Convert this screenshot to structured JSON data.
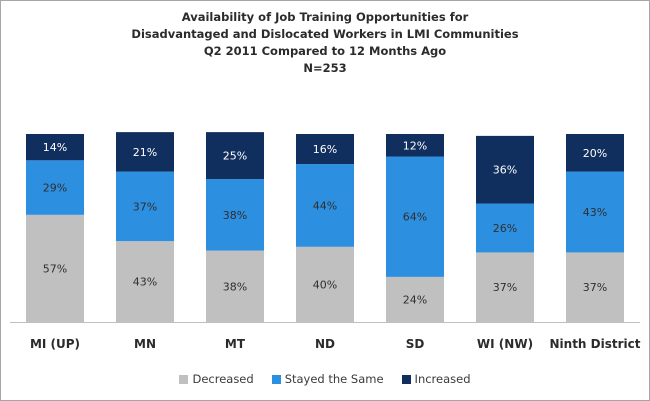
{
  "chart_data": {
    "type": "bar",
    "stacked": true,
    "title_lines": [
      "Availability of Job Training Opportunities for",
      "Disadvantaged  and  Dislocated Workers in LMI Communities",
      "Q2 2011 Compared to 12 Months Ago",
      "N=253"
    ],
    "categories": [
      "MI (UP)",
      "MN",
      "MT",
      "ND",
      "SD",
      "WI (NW)",
      "Ninth District"
    ],
    "series": [
      {
        "name": "Decreased",
        "color": "#c0c0c0",
        "values": [
          57,
          43,
          38,
          40,
          24,
          37,
          37
        ],
        "labels": [
          "57%",
          "43%",
          "38%",
          "40%",
          "24%",
          "37%",
          "37%"
        ]
      },
      {
        "name": "Stayed the Same",
        "color": "#2d8fe0",
        "values": [
          29,
          37,
          38,
          44,
          64,
          26,
          43
        ],
        "labels": [
          "29%",
          "37%",
          "38%",
          "44%",
          "64%",
          "26%",
          "43%"
        ]
      },
      {
        "name": "Increased",
        "color": "#112f5e",
        "values": [
          14,
          21,
          25,
          16,
          12,
          36,
          20
        ],
        "labels": [
          "14%",
          "21%",
          "25%",
          "16%",
          "12%",
          "36%",
          "20%"
        ]
      }
    ],
    "ylim": [
      0,
      100
    ],
    "grid": false,
    "legend_position": "bottom"
  }
}
